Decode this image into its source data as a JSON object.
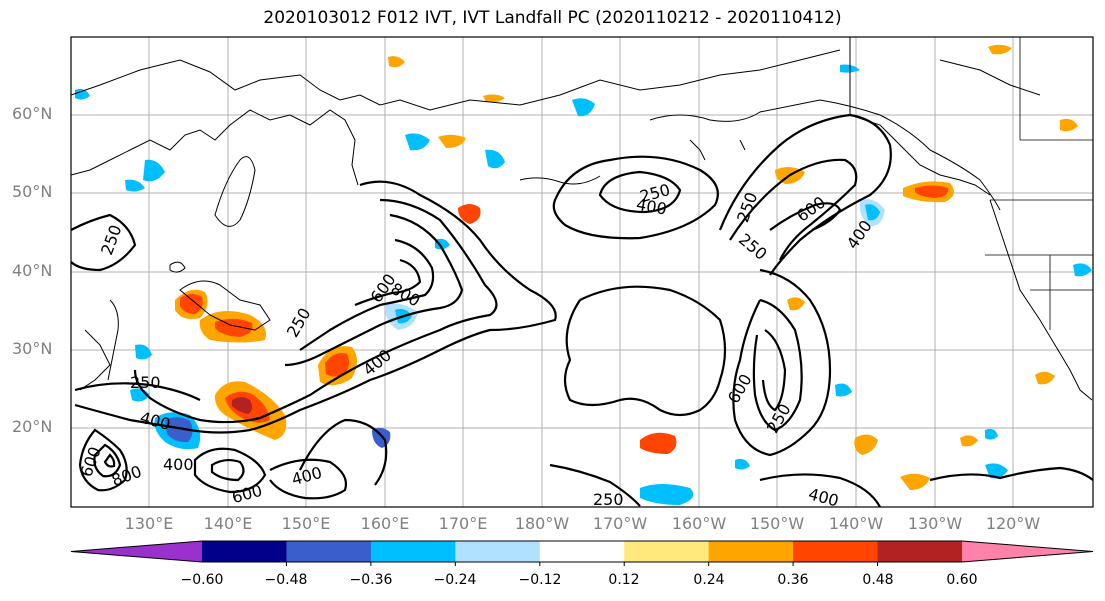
{
  "title": "2020103012 F012 IVT, IVT Landfall PC (2020110212 - 2020110412)",
  "map": {
    "lat_labels": [
      "60°N",
      "50°N",
      "40°N",
      "30°N",
      "20°N"
    ],
    "lon_labels": [
      "130°E",
      "140°E",
      "150°E",
      "160°E",
      "170°E",
      "180°W",
      "170°W",
      "160°W",
      "150°W",
      "140°W",
      "130°W",
      "120°W"
    ],
    "contour_labels": [
      "250",
      "250",
      "400",
      "600",
      "800",
      "400",
      "600",
      "250",
      "400",
      "400",
      "600",
      "800",
      "250",
      "400",
      "250",
      "600",
      "250",
      "400",
      "600",
      "250",
      "250",
      "400"
    ],
    "gridlines": true,
    "fill_colors_negative": [
      "#9932cc",
      "#00008b",
      "#3a5fcd",
      "#00bfff",
      "#b0e2ff"
    ],
    "fill_colors_positive": [
      "#ffe87c",
      "#ffa500",
      "#ff4500",
      "#b22222",
      "#ff82ab"
    ]
  },
  "colorbar": {
    "ticks": [
      "−0.60",
      "−0.48",
      "−0.36",
      "−0.24",
      "−0.12",
      "0.12",
      "0.24",
      "0.36",
      "0.48",
      "0.60"
    ],
    "colors": [
      "#9932cc",
      "#00008b",
      "#3a5fcd",
      "#00bfff",
      "#b0e2ff",
      "#ffffff",
      "#ffe87c",
      "#ffa500",
      "#ff4500",
      "#b22222",
      "#ff82ab"
    ]
  }
}
